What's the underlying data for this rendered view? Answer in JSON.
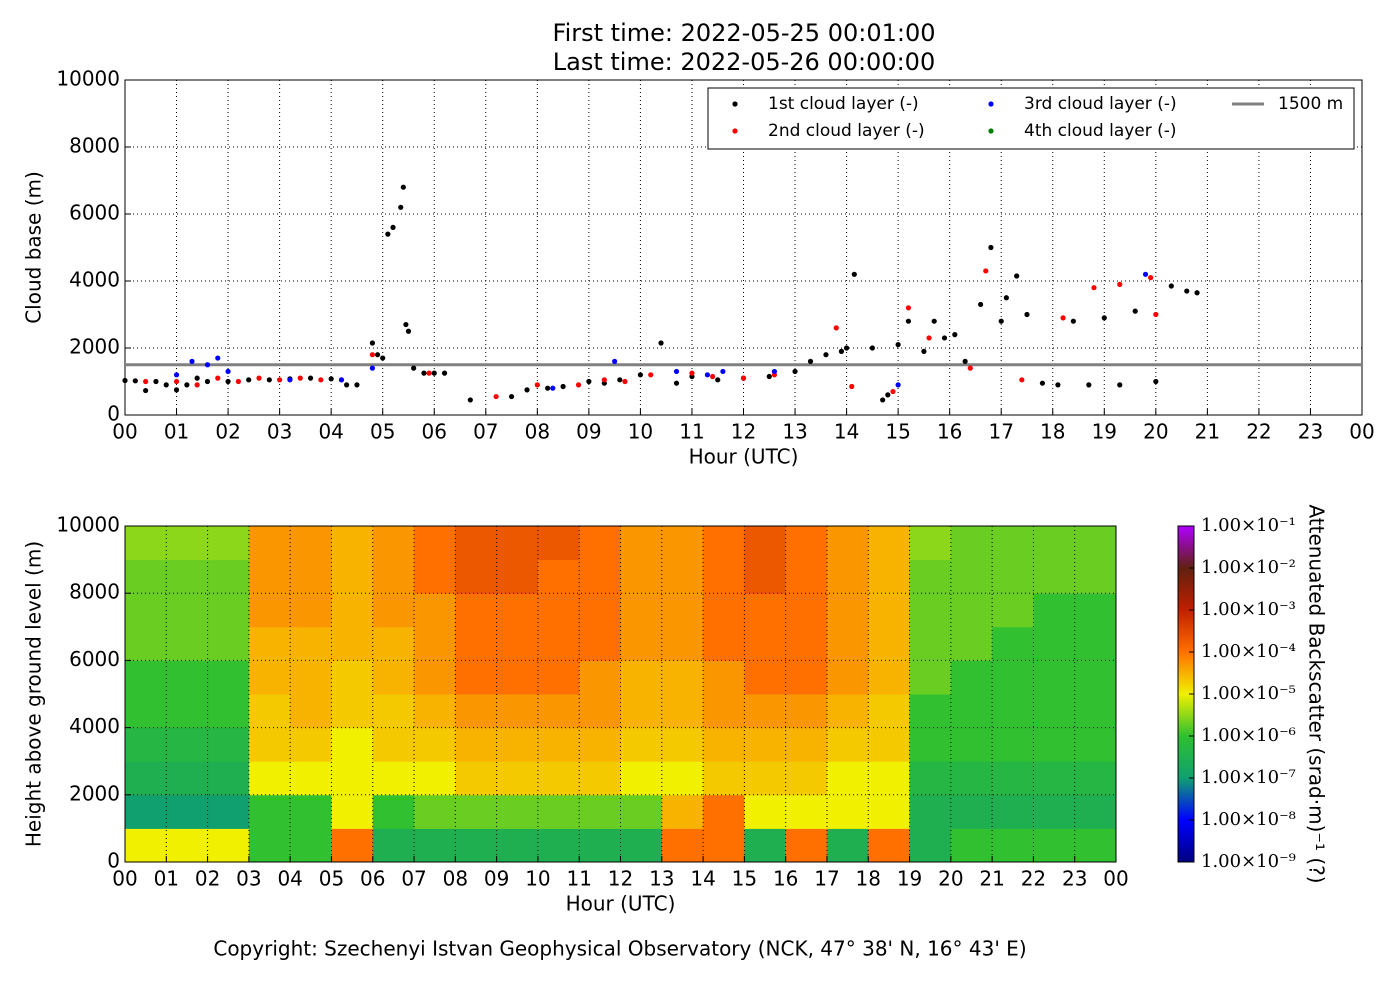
{
  "chart_data": [
    {
      "type": "scatter",
      "title": "First time: 2022-05-25 00:01:00",
      "subtitle": "Last time: 2022-05-26 00:00:00",
      "x_label": "Hour (UTC)",
      "y_label": "Cloud base (m)",
      "xlim": [
        0,
        24
      ],
      "ylim": [
        0,
        10000
      ],
      "xticks": [
        {
          "value": 0,
          "label": "00"
        },
        {
          "value": 1,
          "label": "01"
        },
        {
          "value": 2,
          "label": "02"
        },
        {
          "value": 3,
          "label": "03"
        },
        {
          "value": 4,
          "label": "04"
        },
        {
          "value": 5,
          "label": "05"
        },
        {
          "value": 6,
          "label": "06"
        },
        {
          "value": 7,
          "label": "07"
        },
        {
          "value": 8,
          "label": "08"
        },
        {
          "value": 9,
          "label": "09"
        },
        {
          "value": 10,
          "label": "10"
        },
        {
          "value": 11,
          "label": "11"
        },
        {
          "value": 12,
          "label": "12"
        },
        {
          "value": 13,
          "label": "13"
        },
        {
          "value": 14,
          "label": "14"
        },
        {
          "value": 15,
          "label": "15"
        },
        {
          "value": 16,
          "label": "16"
        },
        {
          "value": 17,
          "label": "17"
        },
        {
          "value": 18,
          "label": "18"
        },
        {
          "value": 19,
          "label": "19"
        },
        {
          "value": 20,
          "label": "20"
        },
        {
          "value": 21,
          "label": "21"
        },
        {
          "value": 22,
          "label": "22"
        },
        {
          "value": 23,
          "label": "23"
        },
        {
          "value": 24,
          "label": "00"
        }
      ],
      "yticks": [
        0,
        2000,
        4000,
        6000,
        8000,
        10000
      ],
      "grid": true,
      "legend": "upper right",
      "series": [
        {
          "name": "1st cloud layer (-)",
          "color": "#000000",
          "x": [
            0.0,
            0.2,
            0.4,
            0.6,
            0.8,
            1.0,
            1.2,
            1.4,
            1.6,
            2.0,
            2.4,
            2.8,
            3.2,
            3.6,
            4.0,
            4.3,
            4.5,
            4.8,
            4.9,
            5.0,
            5.1,
            5.2,
            5.35,
            5.4,
            5.45,
            5.5,
            5.6,
            5.8,
            6.0,
            6.2,
            6.7,
            7.5,
            7.8,
            8.2,
            8.5,
            9.0,
            9.3,
            9.6,
            10.0,
            10.4,
            10.7,
            11.0,
            11.5,
            12.0,
            12.5,
            13.0,
            13.3,
            13.6,
            13.9,
            14.0,
            14.15,
            14.5,
            14.7,
            14.8,
            15.0,
            15.2,
            15.5,
            15.7,
            15.9,
            16.1,
            16.3,
            16.6,
            16.8,
            17.0,
            17.1,
            17.3,
            17.5,
            17.8,
            18.1,
            18.4,
            18.7,
            19.0,
            19.3,
            19.6,
            20.0,
            20.3,
            20.6,
            20.8
          ],
          "y": [
            1030,
            1020,
            730,
            1000,
            900,
            750,
            900,
            1100,
            1000,
            1000,
            1050,
            1050,
            1080,
            1100,
            1080,
            900,
            900,
            2150,
            1800,
            1700,
            5400,
            5600,
            6200,
            6800,
            2700,
            2500,
            1400,
            1250,
            1250,
            1250,
            450,
            550,
            750,
            800,
            850,
            1000,
            950,
            1050,
            1200,
            2150,
            950,
            1150,
            1050,
            1100,
            1150,
            1300,
            1600,
            1800,
            1900,
            2000,
            4200,
            2000,
            450,
            600,
            2100,
            2800,
            1900,
            2800,
            2300,
            2400,
            1600,
            3300,
            5000,
            2800,
            3500,
            4150,
            3000,
            950,
            900,
            2800,
            900,
            2900,
            900,
            3100,
            1000,
            3850,
            3700,
            3650
          ]
        },
        {
          "name": "2nd cloud layer (-)",
          "color": "#ff0000",
          "x": [
            0.4,
            1.0,
            1.4,
            1.8,
            2.2,
            2.6,
            3.0,
            3.4,
            3.8,
            4.2,
            4.8,
            5.9,
            7.2,
            8.0,
            8.8,
            9.3,
            9.7,
            10.2,
            11.0,
            11.4,
            12.0,
            12.6,
            13.8,
            14.1,
            14.9,
            15.2,
            15.6,
            16.4,
            16.7,
            17.4,
            18.2,
            18.8,
            19.3,
            19.9,
            20.0
          ],
          "y": [
            1000,
            1000,
            900,
            1100,
            1000,
            1100,
            1050,
            1100,
            1050,
            1050,
            1800,
            1250,
            550,
            900,
            900,
            1050,
            1000,
            1200,
            1250,
            1150,
            1100,
            1200,
            2600,
            850,
            700,
            3200,
            2300,
            1400,
            4300,
            1050,
            2900,
            3800,
            3900,
            4100,
            3000
          ]
        },
        {
          "name": "3rd cloud layer (-)",
          "color": "#0000ff",
          "x": [
            1.0,
            1.3,
            1.6,
            1.8,
            2.0,
            3.2,
            4.2,
            4.8,
            8.3,
            9.5,
            10.7,
            11.3,
            11.6,
            12.6,
            15.0,
            19.8
          ],
          "y": [
            1200,
            1600,
            1500,
            1700,
            1300,
            1050,
            1050,
            1400,
            800,
            1600,
            1300,
            1200,
            1300,
            1300,
            900,
            4200
          ]
        },
        {
          "name": "4th cloud layer (-)",
          "color": "#008000",
          "x": [],
          "y": []
        }
      ],
      "reference_line": {
        "name": "1500 m",
        "value": 1500,
        "color": "#808080"
      }
    },
    {
      "type": "heatmap",
      "x_label": "Hour (UTC)",
      "y_label": "Height above ground level (m)",
      "colorbar_label": "Attenuated Backscatter (srad·m)⁻¹ (?)",
      "xlim": [
        0,
        24
      ],
      "ylim": [
        0,
        10000
      ],
      "xticks": [
        {
          "value": 0,
          "label": "00"
        },
        {
          "value": 1,
          "label": "01"
        },
        {
          "value": 2,
          "label": "02"
        },
        {
          "value": 3,
          "label": "03"
        },
        {
          "value": 4,
          "label": "04"
        },
        {
          "value": 5,
          "label": "05"
        },
        {
          "value": 6,
          "label": "06"
        },
        {
          "value": 7,
          "label": "07"
        },
        {
          "value": 8,
          "label": "08"
        },
        {
          "value": 9,
          "label": "09"
        },
        {
          "value": 10,
          "label": "10"
        },
        {
          "value": 11,
          "label": "11"
        },
        {
          "value": 12,
          "label": "12"
        },
        {
          "value": 13,
          "label": "13"
        },
        {
          "value": 14,
          "label": "14"
        },
        {
          "value": 15,
          "label": "15"
        },
        {
          "value": 16,
          "label": "16"
        },
        {
          "value": 17,
          "label": "17"
        },
        {
          "value": 18,
          "label": "18"
        },
        {
          "value": 19,
          "label": "19"
        },
        {
          "value": 20,
          "label": "20"
        },
        {
          "value": 21,
          "label": "21"
        },
        {
          "value": 22,
          "label": "22"
        },
        {
          "value": 23,
          "label": "23"
        },
        {
          "value": 24,
          "label": "00"
        }
      ],
      "yticks": [
        0,
        2000,
        4000,
        6000,
        8000,
        10000
      ],
      "grid": true,
      "x_edges": [
        0,
        1,
        2,
        3,
        4,
        5,
        6,
        7,
        8,
        9,
        10,
        11,
        12,
        13,
        14,
        15,
        16,
        17,
        18,
        19,
        20,
        21,
        22,
        23,
        24
      ],
      "y_edges": [
        0,
        1000,
        2000,
        3000,
        4000,
        5000,
        6000,
        7000,
        8000,
        9000,
        10000
      ],
      "z": [
        [
          1e-05,
          1e-05,
          1e-05,
          1e-06,
          1e-06,
          0.0001,
          3e-07,
          3e-07,
          3e-07,
          3e-07,
          3e-07,
          3e-07,
          3e-07,
          0.0001,
          0.0001,
          3e-07,
          0.0001,
          3e-07,
          0.0001,
          3e-07,
          1e-06,
          1e-06,
          1e-06,
          1e-06
        ],
        [
          1e-07,
          1e-07,
          1e-07,
          1e-06,
          1e-06,
          1e-05,
          1e-06,
          2e-06,
          2e-06,
          2e-06,
          2e-06,
          2e-06,
          2e-06,
          3e-05,
          0.0001,
          1e-05,
          1e-05,
          1e-05,
          1e-05,
          3e-07,
          3e-07,
          3e-07,
          3e-07,
          3e-07
        ],
        [
          3e-07,
          3e-07,
          3e-07,
          1e-05,
          1e-05,
          1e-05,
          1e-05,
          1e-05,
          2e-05,
          2e-05,
          2e-05,
          2e-05,
          1e-05,
          1e-05,
          2e-05,
          2e-05,
          2e-05,
          1e-05,
          1e-05,
          5e-07,
          5e-07,
          5e-07,
          5e-07,
          5e-07
        ],
        [
          5e-07,
          5e-07,
          5e-07,
          2e-05,
          2e-05,
          1e-05,
          2e-05,
          2e-05,
          3e-05,
          3e-05,
          3e-05,
          3e-05,
          2e-05,
          2e-05,
          3e-05,
          3e-05,
          3e-05,
          2e-05,
          2e-05,
          1e-06,
          1e-06,
          1e-06,
          1e-06,
          1e-06
        ],
        [
          1e-06,
          1e-06,
          1e-06,
          2e-05,
          3e-05,
          2e-05,
          2e-05,
          3e-05,
          5e-05,
          5e-05,
          5e-05,
          5e-05,
          3e-05,
          3e-05,
          5e-05,
          5e-05,
          5e-05,
          3e-05,
          2e-05,
          1e-06,
          1e-06,
          1e-06,
          1e-06,
          1e-06
        ],
        [
          1e-06,
          1e-06,
          1e-06,
          3e-05,
          3e-05,
          2e-05,
          3e-05,
          5e-05,
          0.0001,
          0.0001,
          0.0001,
          5e-05,
          3e-05,
          3e-05,
          5e-05,
          0.0001,
          0.0001,
          5e-05,
          3e-05,
          2e-06,
          1e-06,
          1e-06,
          1e-06,
          1e-06
        ],
        [
          2e-06,
          2e-06,
          2e-06,
          3e-05,
          3e-05,
          3e-05,
          3e-05,
          5e-05,
          0.0001,
          0.0001,
          0.0001,
          0.0001,
          5e-05,
          5e-05,
          0.0001,
          0.0001,
          0.0001,
          5e-05,
          3e-05,
          2e-06,
          2e-06,
          1e-06,
          1e-06,
          1e-06
        ],
        [
          2e-06,
          2e-06,
          2e-06,
          5e-05,
          5e-05,
          3e-05,
          5e-05,
          5e-05,
          0.0001,
          0.0001,
          0.0001,
          0.0001,
          5e-05,
          5e-05,
          0.0001,
          0.0001,
          0.0001,
          5e-05,
          3e-05,
          2e-06,
          2e-06,
          2e-06,
          1e-06,
          1e-06
        ],
        [
          2e-06,
          2e-06,
          2e-06,
          5e-05,
          5e-05,
          3e-05,
          5e-05,
          0.0001,
          0.0002,
          0.0002,
          0.0001,
          0.0001,
          5e-05,
          5e-05,
          0.0001,
          0.0002,
          0.0001,
          5e-05,
          3e-05,
          2e-06,
          2e-06,
          2e-06,
          2e-06,
          2e-06
        ],
        [
          3e-06,
          3e-06,
          3e-06,
          5e-05,
          5e-05,
          3e-05,
          5e-05,
          0.0001,
          0.0002,
          0.0002,
          0.0002,
          0.0001,
          5e-05,
          5e-05,
          0.0001,
          0.0002,
          0.0001,
          5e-05,
          3e-05,
          3e-06,
          2e-06,
          2e-06,
          2e-06,
          2e-06
        ]
      ],
      "clim": [
        1e-09,
        0.1
      ],
      "color_log_scale": true,
      "colorscale": [
        "#000080",
        "#0000ff",
        "#10a070",
        "#30c030",
        "#f0f000",
        "#ff7000",
        "#c02000",
        "#602010",
        "#b000ff"
      ],
      "colorbar_ticks": [
        {
          "value": 1e-09,
          "label": "1.00×10⁻⁹"
        },
        {
          "value": 1e-08,
          "label": "1.00×10⁻⁸"
        },
        {
          "value": 1e-07,
          "label": "1.00×10⁻⁷"
        },
        {
          "value": 1e-06,
          "label": "1.00×10⁻⁶"
        },
        {
          "value": 1e-05,
          "label": "1.00×10⁻⁵"
        },
        {
          "value": 0.0001,
          "label": "1.00×10⁻⁴"
        },
        {
          "value": 0.001,
          "label": "1.00×10⁻³"
        },
        {
          "value": 0.01,
          "label": "1.00×10⁻²"
        },
        {
          "value": 0.1,
          "label": "1.00×10⁻¹"
        }
      ]
    }
  ],
  "copyright": "Copyright: Szechenyi Istvan Geophysical Observatory (NCK, 47° 38' N, 16° 43' E)"
}
